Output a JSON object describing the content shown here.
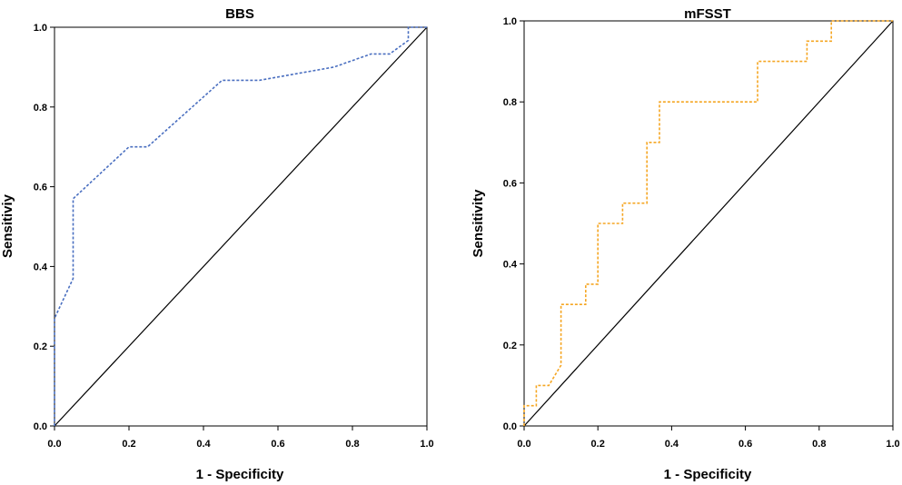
{
  "chart_data": [
    {
      "type": "line",
      "title": "BBS",
      "xlabel": "1 - Specificity",
      "ylabel": "Sensitiviy",
      "xlim": [
        0,
        1
      ],
      "ylim": [
        0,
        1
      ],
      "x_ticks": [
        "0.0",
        "0.2",
        "0.4",
        "0.6",
        "0.8",
        "1.0"
      ],
      "y_ticks": [
        "0.0",
        "0.2",
        "0.4",
        "0.6",
        "0.8",
        "1.0"
      ],
      "grid": false,
      "reference_line": [
        [
          0,
          0
        ],
        [
          1,
          1
        ]
      ],
      "series": [
        {
          "color": "#4a6fc0",
          "style": "dashed",
          "x": [
            0.0,
            0.0,
            0.0,
            0.05,
            0.05,
            0.2,
            0.25,
            0.45,
            0.55,
            0.75,
            0.85,
            0.9,
            0.95,
            0.95,
            1.0
          ],
          "y": [
            0.0,
            0.27,
            0.27,
            0.37,
            0.57,
            0.7,
            0.7,
            0.867,
            0.867,
            0.9,
            0.933,
            0.933,
            0.967,
            1.0,
            1.0
          ]
        }
      ]
    },
    {
      "type": "line",
      "title": "mFSST",
      "xlabel": "1 - Specificity",
      "ylabel": "Sensitivity",
      "xlim": [
        0,
        1
      ],
      "ylim": [
        0,
        1
      ],
      "x_ticks": [
        "0.0",
        "0.2",
        "0.4",
        "0.6",
        "0.8",
        "1.0"
      ],
      "y_ticks": [
        "0.0",
        "0.2",
        "0.4",
        "0.6",
        "0.8",
        "1.0"
      ],
      "grid": false,
      "reference_line": [
        [
          0,
          0
        ],
        [
          1,
          1
        ]
      ],
      "series": [
        {
          "color": "#f5a623",
          "style": "dotted",
          "x": [
            0.0,
            0.0,
            0.033,
            0.033,
            0.067,
            0.1,
            0.1,
            0.167,
            0.167,
            0.2,
            0.2,
            0.267,
            0.267,
            0.333,
            0.333,
            0.367,
            0.367,
            0.633,
            0.633,
            0.767,
            0.767,
            0.833,
            0.833,
            1.0
          ],
          "y": [
            0.0,
            0.05,
            0.05,
            0.1,
            0.1,
            0.15,
            0.3,
            0.3,
            0.35,
            0.35,
            0.5,
            0.5,
            0.55,
            0.55,
            0.7,
            0.7,
            0.8,
            0.8,
            0.9,
            0.9,
            0.95,
            0.95,
            1.0,
            1.0
          ]
        }
      ]
    }
  ]
}
